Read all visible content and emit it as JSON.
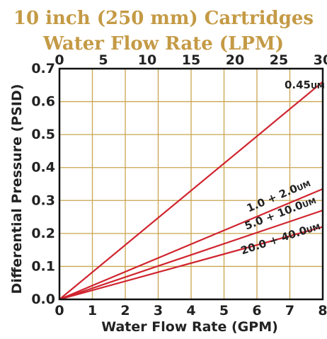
{
  "chart_data": {
    "type": "line",
    "title": "10 inch (250 mm) Cartridges",
    "subtitle": "Water Flow Rate (LPM)",
    "xlabel": "Water Flow Rate (GPM)",
    "ylabel": "Differential Pressure  (PSID)",
    "xlim": [
      0,
      8
    ],
    "ylim": [
      0,
      0.7
    ],
    "x_ticks": [
      "0",
      "1",
      "2",
      "3",
      "4",
      "5",
      "6",
      "7",
      "8"
    ],
    "y_ticks": [
      "0.0",
      "0.1",
      "0.2",
      "0.3",
      "0.4",
      "0.5",
      "0.6",
      "0.7"
    ],
    "top_axis": {
      "label": "Water Flow Rate (LPM)",
      "ticks": [
        "0",
        "5",
        "10",
        "15",
        "20",
        "25",
        "30"
      ],
      "lim": [
        0,
        30
      ]
    },
    "grid": true,
    "series": [
      {
        "name": "0.45",
        "unit": "UM",
        "x": [
          0,
          8
        ],
        "y": [
          0,
          0.66
        ]
      },
      {
        "name": "1.0 + 2.0",
        "unit": "UM",
        "x": [
          0,
          8
        ],
        "y": [
          0,
          0.335
        ]
      },
      {
        "name": "5.0 + 10.0",
        "unit": "UM",
        "x": [
          0,
          8
        ],
        "y": [
          0,
          0.27
        ]
      },
      {
        "name": "20.0 + 40.0",
        "unit": "UM",
        "x": [
          0,
          8
        ],
        "y": [
          0,
          0.22
        ]
      }
    ],
    "colors": {
      "grid": "#c9a54f",
      "series": "#d0252f",
      "frame": "#111111",
      "title": "#c49a45"
    }
  }
}
